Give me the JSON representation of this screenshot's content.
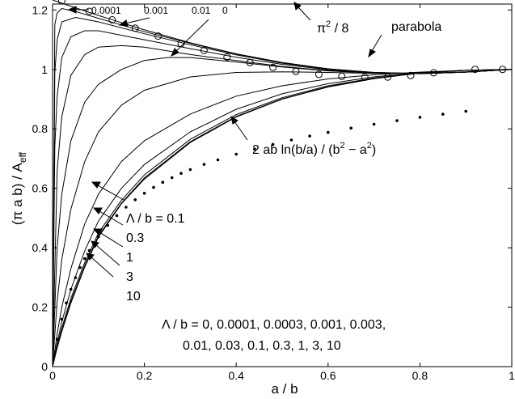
{
  "chart_data": {
    "type": "line",
    "title": "",
    "xlabel": "a / b",
    "ylabel": "(π a b) / A",
    "ylabel_sub": "eff",
    "xlim": [
      0,
      1
    ],
    "ylim": [
      0,
      1.22
    ],
    "xticks": [
      0,
      0.2,
      0.4,
      0.6,
      0.8,
      1
    ],
    "xtick_labels": [
      "0",
      "0.2",
      "0.4",
      "0.6",
      "0.8",
      "1"
    ],
    "yticks": [
      0,
      0.2,
      0.4,
      0.6,
      0.8,
      1,
      1.2
    ],
    "ytick_labels": [
      "0",
      "0.2",
      "0.4",
      "0.6",
      "0.8",
      "1",
      "1.2"
    ],
    "grid": false,
    "lambda_values": [
      0,
      0.0001,
      0.0003,
      0.001,
      0.003,
      0.01,
      0.03,
      0.1,
      0.3,
      1,
      3,
      10
    ],
    "series": [
      {
        "lambda_over_b": 0,
        "x": [
          0,
          0.02,
          0.05,
          0.1,
          0.2,
          0.3,
          0.4,
          0.5,
          0.6,
          0.7,
          0.8,
          0.9,
          1
        ],
        "y": [
          1.2337,
          1.2231,
          1.2074,
          1.1815,
          1.133,
          1.0895,
          1.0526,
          1.0234,
          1.0021,
          0.9895,
          0.9856,
          0.9909,
          1.0
        ]
      },
      {
        "lambda_over_b": 0.0001,
        "x": [
          0,
          0.005,
          0.01,
          0.02,
          0.05,
          0.1,
          0.2,
          0.3,
          0.4,
          0.5,
          0.6,
          0.7,
          0.8,
          0.9,
          1
        ],
        "y": [
          0,
          1.15,
          1.19,
          1.205,
          1.195,
          1.172,
          1.127,
          1.088,
          1.052,
          1.023,
          1.002,
          0.99,
          0.986,
          0.991,
          1.0
        ]
      },
      {
        "lambda_over_b": 0.0003,
        "x": [
          0,
          0.005,
          0.01,
          0.02,
          0.05,
          0.1,
          0.2,
          0.3,
          0.4,
          0.5,
          0.6,
          0.7,
          0.8,
          0.9,
          1
        ],
        "y": [
          0,
          0.99,
          1.1,
          1.16,
          1.175,
          1.16,
          1.12,
          1.083,
          1.049,
          1.021,
          1.001,
          0.99,
          0.986,
          0.991,
          1.0
        ]
      },
      {
        "lambda_over_b": 0.001,
        "x": [
          0,
          0.005,
          0.01,
          0.02,
          0.04,
          0.07,
          0.1,
          0.2,
          0.3,
          0.4,
          0.5,
          0.6,
          0.7,
          0.8,
          0.9,
          1
        ],
        "y": [
          0,
          0.74,
          0.91,
          1.04,
          1.11,
          1.13,
          1.13,
          1.1,
          1.07,
          1.041,
          1.017,
          0.999,
          0.989,
          0.986,
          0.991,
          1.0
        ]
      },
      {
        "lambda_over_b": 0.003,
        "x": [
          0,
          0.01,
          0.02,
          0.04,
          0.07,
          0.1,
          0.15,
          0.2,
          0.3,
          0.4,
          0.5,
          0.6,
          0.7,
          0.8,
          0.9,
          1
        ],
        "y": [
          0,
          0.66,
          0.84,
          0.98,
          1.05,
          1.075,
          1.08,
          1.075,
          1.05,
          1.03,
          1.01,
          0.996,
          0.988,
          0.986,
          0.991,
          1.0
        ]
      },
      {
        "lambda_over_b": 0.01,
        "x": [
          0,
          0.01,
          0.02,
          0.04,
          0.07,
          0.1,
          0.15,
          0.2,
          0.25,
          0.3,
          0.4,
          0.5,
          0.6,
          0.7,
          0.8,
          0.9,
          1
        ],
        "y": [
          0,
          0.4,
          0.58,
          0.76,
          0.89,
          0.95,
          1.0,
          1.03,
          1.04,
          1.04,
          1.025,
          1.008,
          0.995,
          0.988,
          0.986,
          0.991,
          1.0
        ]
      },
      {
        "lambda_over_b": 0.03,
        "x": [
          0,
          0.01,
          0.02,
          0.04,
          0.07,
          0.1,
          0.15,
          0.2,
          0.3,
          0.4,
          0.5,
          0.6,
          0.7,
          0.8,
          0.9,
          1
        ],
        "y": [
          0,
          0.22,
          0.36,
          0.53,
          0.69,
          0.79,
          0.88,
          0.93,
          0.975,
          0.99,
          0.992,
          0.99,
          0.987,
          0.987,
          0.992,
          1.0
        ]
      },
      {
        "lambda_over_b": 0.1,
        "x": [
          0,
          0.01,
          0.02,
          0.04,
          0.07,
          0.1,
          0.15,
          0.2,
          0.3,
          0.4,
          0.5,
          0.6,
          0.7,
          0.8,
          0.9,
          1
        ],
        "y": [
          0,
          0.11,
          0.2,
          0.33,
          0.48,
          0.58,
          0.69,
          0.76,
          0.85,
          0.91,
          0.945,
          0.968,
          0.982,
          0.991,
          0.997,
          1.0
        ]
      },
      {
        "lambda_over_b": 0.3,
        "x": [
          0,
          0.01,
          0.02,
          0.04,
          0.07,
          0.1,
          0.15,
          0.2,
          0.3,
          0.4,
          0.5,
          0.6,
          0.7,
          0.8,
          0.9,
          1
        ],
        "y": [
          0,
          0.08,
          0.15,
          0.26,
          0.39,
          0.49,
          0.6,
          0.68,
          0.79,
          0.866,
          0.918,
          0.952,
          0.975,
          0.989,
          0.997,
          1.0
        ]
      },
      {
        "lambda_over_b": 1,
        "x": [
          0,
          0.01,
          0.02,
          0.04,
          0.07,
          0.1,
          0.15,
          0.2,
          0.3,
          0.4,
          0.5,
          0.6,
          0.7,
          0.8,
          0.9,
          1
        ],
        "y": [
          0,
          0.07,
          0.13,
          0.23,
          0.35,
          0.45,
          0.56,
          0.645,
          0.765,
          0.848,
          0.905,
          0.945,
          0.971,
          0.988,
          0.997,
          1.0
        ]
      },
      {
        "lambda_over_b": 3,
        "x": [
          0,
          0.01,
          0.02,
          0.04,
          0.07,
          0.1,
          0.15,
          0.2,
          0.3,
          0.4,
          0.5,
          0.6,
          0.7,
          0.8,
          0.9,
          1
        ],
        "y": [
          0,
          0.065,
          0.12,
          0.22,
          0.34,
          0.44,
          0.55,
          0.635,
          0.757,
          0.842,
          0.901,
          0.942,
          0.97,
          0.988,
          0.997,
          1.0
        ]
      },
      {
        "lambda_over_b": 10,
        "x": [
          0,
          0.01,
          0.02,
          0.04,
          0.07,
          0.1,
          0.15,
          0.2,
          0.3,
          0.4,
          0.5,
          0.6,
          0.7,
          0.8,
          0.9,
          1
        ],
        "y": [
          0,
          0.063,
          0.117,
          0.214,
          0.335,
          0.436,
          0.548,
          0.631,
          0.754,
          0.84,
          0.9,
          0.941,
          0.969,
          0.988,
          0.997,
          1.0
        ]
      }
    ],
    "log_formula_points": {
      "x": [
        0.01,
        0.02,
        0.03,
        0.04,
        0.05,
        0.06,
        0.07,
        0.08,
        0.09,
        0.1,
        0.12,
        0.14,
        0.16,
        0.18,
        0.2,
        0.22,
        0.24,
        0.26,
        0.28,
        0.3,
        0.33,
        0.36,
        0.4,
        0.44,
        0.48,
        0.52,
        0.56,
        0.6,
        0.65,
        0.7,
        0.75,
        0.8,
        0.85,
        0.9
      ],
      "y": [
        0.0921,
        0.1597,
        0.2144,
        0.2601,
        0.2992,
        0.3333,
        0.3635,
        0.3904,
        0.4147,
        0.4367,
        0.4753,
        0.5082,
        0.5365,
        0.5614,
        0.5833,
        0.6028,
        0.6203,
        0.636,
        0.6502,
        0.6631,
        0.6804,
        0.6958,
        0.7148,
        0.7321,
        0.7479,
        0.7624,
        0.7758,
        0.7882,
        0.8025,
        0.8156,
        0.8277,
        0.8389,
        0.8494,
        0.8593
      ]
    },
    "parabola_points": {
      "x": [
        0.02,
        0.08,
        0.13,
        0.18,
        0.23,
        0.28,
        0.33,
        0.38,
        0.43,
        0.48,
        0.53,
        0.58,
        0.63,
        0.68,
        0.73,
        0.78,
        0.83,
        0.92,
        0.98
      ],
      "y": [
        1.2307,
        1.1956,
        1.1668,
        1.1389,
        1.1121,
        1.0868,
        1.0633,
        1.0419,
        1.023,
        1.0068,
        0.9935,
        0.9834,
        0.9767,
        0.9737,
        0.9745,
        0.9795,
        0.9889,
        1.0002,
        1.0
      ]
    },
    "annotations": [
      {
        "text": "0.0001",
        "kind": "small"
      },
      {
        "text": "0.001",
        "kind": "small"
      },
      {
        "text": "0.01",
        "kind": "small"
      },
      {
        "text": "0",
        "kind": "small"
      },
      {
        "text": "π",
        "kind": "main"
      },
      {
        "text": "2",
        "kind": "sup"
      },
      {
        "text": " / 8",
        "kind": "main"
      },
      {
        "text": "parabola",
        "kind": "main"
      },
      {
        "text": "2 ab ln(b/a) / (b",
        "kind": "main"
      },
      {
        "text": "2",
        "kind": "sup"
      },
      {
        "text": " − a",
        "kind": "main"
      },
      {
        "text": "2",
        "kind": "sup"
      },
      {
        "text": ")",
        "kind": "main"
      },
      {
        "text": "Λ / b = 0.1",
        "kind": "main"
      },
      {
        "text": "0.3",
        "kind": "main"
      },
      {
        "text": "1",
        "kind": "main"
      },
      {
        "text": "3",
        "kind": "main"
      },
      {
        "text": "10",
        "kind": "main"
      },
      {
        "text": "Λ / b = 0, 0.0001, 0.0003, 0.001, 0.003,",
        "kind": "main"
      },
      {
        "text": "0.01,  0.03,  0.1,  0.3,  1,  3, 10",
        "kind": "main"
      }
    ]
  }
}
